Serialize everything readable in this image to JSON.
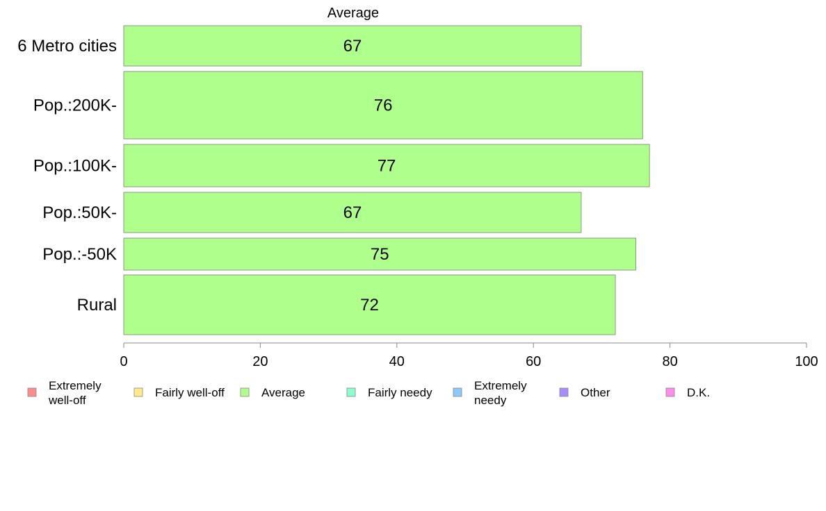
{
  "chart_data": {
    "type": "bar",
    "orientation": "horizontal",
    "title": "Average",
    "categories": [
      "6 Metro cities",
      "Pop.:200K-",
      "Pop.:100K-",
      "Pop.:50K-",
      "Pop.:-50K",
      "Rural"
    ],
    "series": [
      {
        "name": "Average",
        "values": [
          67,
          76,
          77,
          67,
          75,
          72
        ],
        "labels": [
          "67",
          "76",
          "77",
          "67",
          "75",
          "72"
        ]
      }
    ],
    "xlim": [
      0,
      100
    ],
    "xticks": [
      "0",
      "20",
      "40",
      "60",
      "80",
      "100"
    ],
    "grid": false,
    "legend": {
      "placement": "bottom",
      "items": [
        {
          "lines": [
            "Extremely",
            "well-off"
          ],
          "color": "#ff8c8c"
        },
        {
          "lines": [
            "Fairly well-off"
          ],
          "color": "#ffe98c"
        },
        {
          "lines": [
            "Average"
          ],
          "color": "#aeff8c"
        },
        {
          "lines": [
            "Fairly needy"
          ],
          "color": "#8cffce"
        },
        {
          "lines": [
            "Extremely",
            "needy"
          ],
          "color": "#8cc9ff"
        },
        {
          "lines": [
            "Other"
          ],
          "color": "#a98cff"
        },
        {
          "lines": [
            "D.K."
          ],
          "color": "#ff8cea"
        }
      ]
    },
    "colors": {
      "bar": "#aeff8c",
      "bar_stroke": "#8a9a84",
      "axis": "#888888"
    }
  }
}
